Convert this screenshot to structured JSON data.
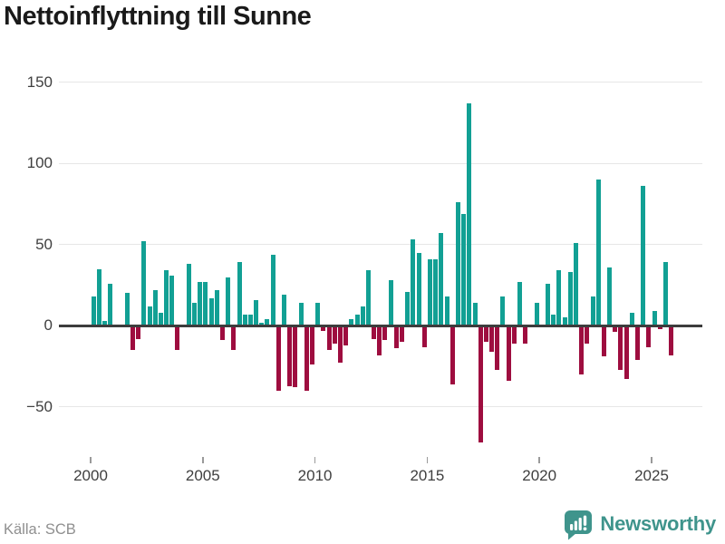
{
  "title": "Nettoinflyttning till Sunne",
  "source": "Källa: SCB",
  "branding": {
    "logo_text": "Newsworthy",
    "logo_icon": "bar-chart-speech-bubble-icon"
  },
  "colors": {
    "background": "#ffffff",
    "positive_bar": "#12a094",
    "negative_bar": "#9e0d3f",
    "grid": "#e7e7e7",
    "zero_line": "#3d3d3d",
    "axis_text": "#3f3f3f",
    "title_text": "#1a1a1a",
    "source_text": "#8f8f8f",
    "brand": "#3f948c"
  },
  "chart_data": {
    "type": "bar",
    "title": "Nettoinflyttning till Sunne",
    "xlabel": "",
    "ylabel": "",
    "frequency": "quarterly",
    "period_start": "2000-Q1",
    "period_end": "2025-Q4",
    "x_tick_years": [
      2000,
      2005,
      2010,
      2015,
      2020,
      2025
    ],
    "x_tick_labels": [
      "2000",
      "2005",
      "2010",
      "2015",
      "2020",
      "2025"
    ],
    "y_ticks": [
      150,
      100,
      50,
      0,
      -50
    ],
    "y_tick_labels": [
      "150",
      "100",
      "50",
      "0",
      "−50"
    ],
    "ylim": [
      -80,
      157
    ],
    "grid": "horizontal-only",
    "legend": "none",
    "values": [
      18,
      35,
      3,
      26,
      0,
      0,
      20,
      -15,
      -8,
      52,
      12,
      22,
      8,
      34,
      31,
      -15,
      1,
      38,
      14,
      27,
      27,
      17,
      22,
      -9,
      30,
      -15,
      39,
      7,
      7,
      16,
      2,
      4,
      44,
      -40,
      19,
      -37,
      -38,
      14,
      -40,
      -24,
      14,
      -3,
      -15,
      -11,
      -23,
      -12,
      4,
      7,
      12,
      34,
      -8,
      -18,
      -9,
      28,
      -14,
      -10,
      21,
      53,
      45,
      -13,
      41,
      41,
      57,
      18,
      -36,
      76,
      69,
      137,
      14,
      -72,
      -10,
      -16,
      -27,
      18,
      -34,
      -11,
      27,
      -11,
      0,
      14,
      0,
      26,
      7,
      34,
      5,
      33,
      51,
      -30,
      -11,
      18,
      90,
      -19,
      36,
      -4,
      -27,
      -33,
      8,
      -21,
      86,
      -13,
      9,
      -2,
      39,
      -18
    ]
  }
}
